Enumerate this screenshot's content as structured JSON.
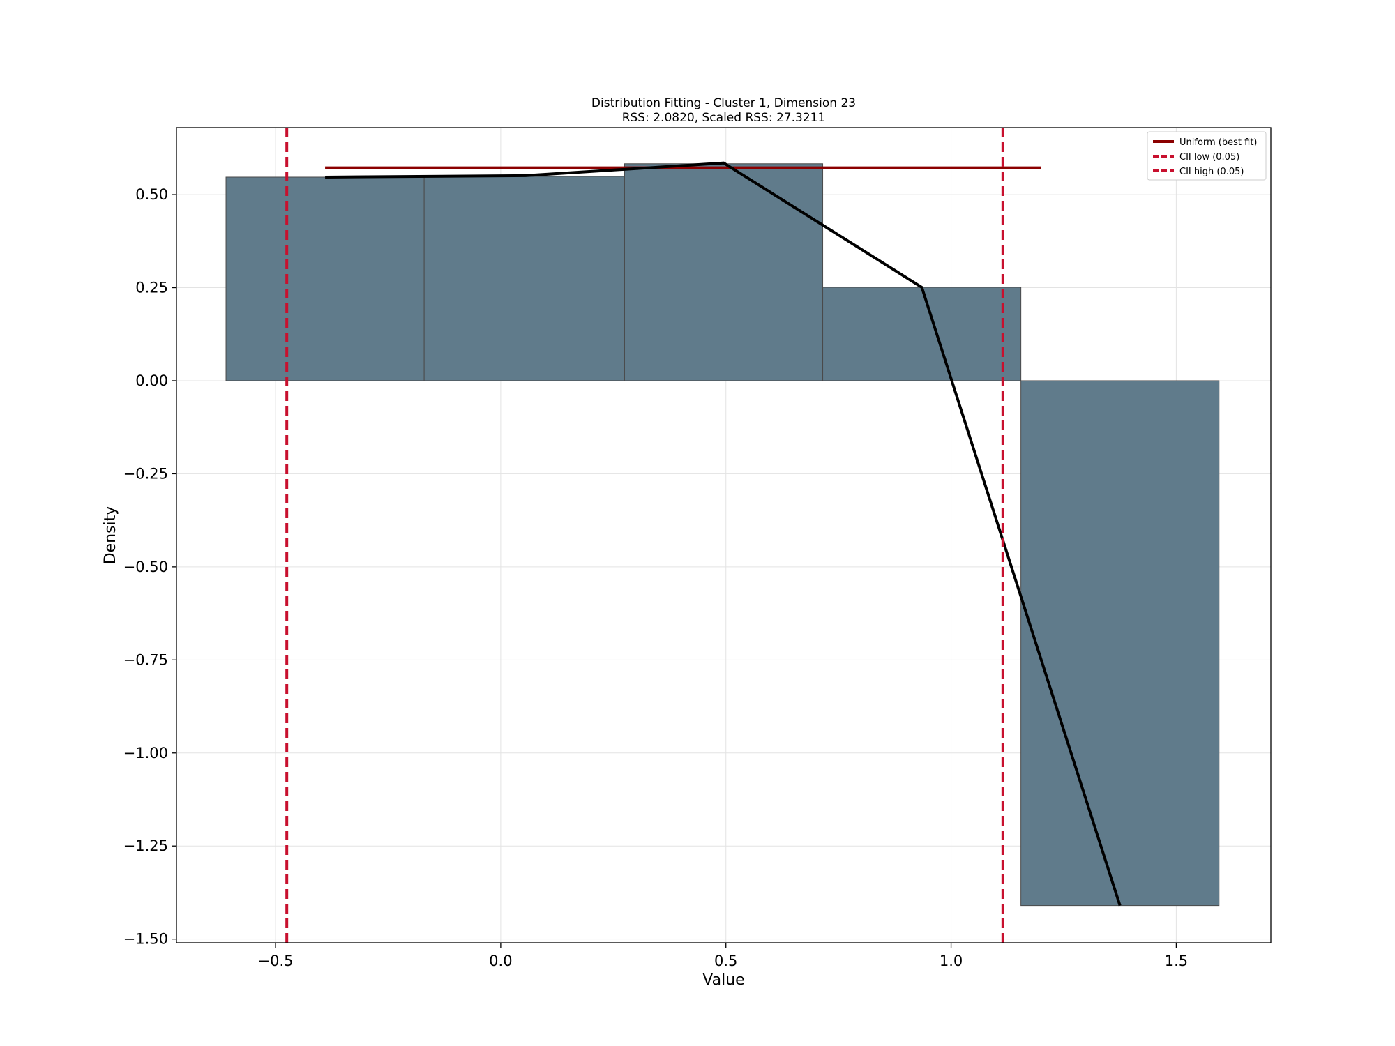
{
  "chart_data": {
    "type": "bar",
    "title": "Distribution Fitting - Cluster 1, Dimension 23",
    "subtitle": "RSS: 2.0820, Scaled RSS: 27.3211",
    "xlabel": "Value",
    "ylabel": "Density",
    "xlim": [
      -0.72,
      1.71
    ],
    "ylim": [
      -1.51,
      0.68
    ],
    "xticks": [
      -0.5,
      0.0,
      0.5,
      1.0,
      1.5
    ],
    "xtick_labels": [
      "−0.5",
      "0.0",
      "0.5",
      "1.0",
      "1.5"
    ],
    "yticks": [
      0.5,
      0.25,
      0.0,
      -0.25,
      -0.5,
      -0.75,
      -1.0,
      -1.25,
      -1.5
    ],
    "ytick_labels": [
      "0.50",
      "0.25",
      "0.00",
      "−0.25",
      "−0.50",
      "−0.75",
      "−1.00",
      "−1.25",
      "−1.50"
    ],
    "grid": true,
    "legend_position": "top-right",
    "bars": {
      "bin_edges": [
        -0.61,
        -0.17,
        0.275,
        0.715,
        1.155,
        1.595
      ],
      "values": [
        0.547,
        0.549,
        0.583,
        0.251,
        -1.41
      ],
      "color": "#607b8b",
      "edge_color": "#4a4a4a"
    },
    "series": [
      {
        "name": "Uniform (best fit)",
        "kind": "line",
        "color": "#8b0000",
        "dash": "solid",
        "x": [
          -0.39,
          1.2
        ],
        "y": [
          0.572,
          0.572
        ]
      },
      {
        "name": "CII low (0.05)",
        "kind": "vline",
        "color": "#c8102e",
        "dash": "dashed",
        "x": -0.475
      },
      {
        "name": "CII high (0.05)",
        "kind": "vline",
        "color": "#c8102e",
        "dash": "dashed",
        "x": 1.115
      }
    ],
    "density_curve": {
      "color": "#000000",
      "x": [
        -0.39,
        0.055,
        0.495,
        0.935,
        1.375
      ],
      "y": [
        0.547,
        0.551,
        0.585,
        0.251,
        -1.41
      ]
    }
  }
}
